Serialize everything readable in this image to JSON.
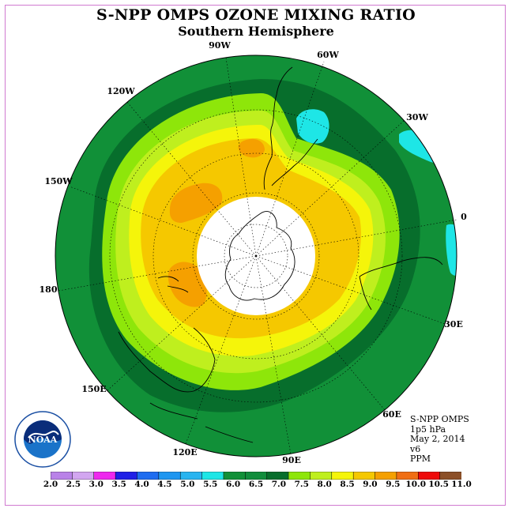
{
  "title": "S-NPP OMPS OZONE MIXING RATIO",
  "subtitle": "Southern Hemisphere",
  "longitude_labels": [
    {
      "text": "90W"
    },
    {
      "text": "60W"
    },
    {
      "text": "30W"
    },
    {
      "text": "0"
    },
    {
      "text": "30E"
    },
    {
      "text": "60E"
    },
    {
      "text": "90E"
    },
    {
      "text": "120E"
    },
    {
      "text": "150E"
    },
    {
      "text": "180"
    },
    {
      "text": "150W"
    },
    {
      "text": "120W"
    }
  ],
  "info": {
    "instrument": "S-NPP OMPS",
    "level": "1p5 hPa",
    "date": "May 2, 2014",
    "version": "v6",
    "units": "PPM"
  },
  "logo_text": "NOAA",
  "colorbar": {
    "ticks": [
      "2.0",
      "2.5",
      "3.0",
      "3.5",
      "4.0",
      "4.5",
      "5.0",
      "5.5",
      "6.0",
      "6.5",
      "7.0",
      "7.5",
      "8.0",
      "8.5",
      "9.0",
      "9.5",
      "10.0",
      "10.5",
      "11.0"
    ],
    "colors": [
      "#b982e8",
      "#d2a6f0",
      "#ee28ee",
      "#2020e6",
      "#1e6cf0",
      "#1e96f0",
      "#28b4f0",
      "#1ee6e6",
      "#119038",
      "#118d3c",
      "#076e2c",
      "#8ee60a",
      "#bfef1e",
      "#f5f50a",
      "#f5c800",
      "#f5a000",
      "#f06e14",
      "#ee0a0a",
      "#8c5028"
    ]
  }
}
